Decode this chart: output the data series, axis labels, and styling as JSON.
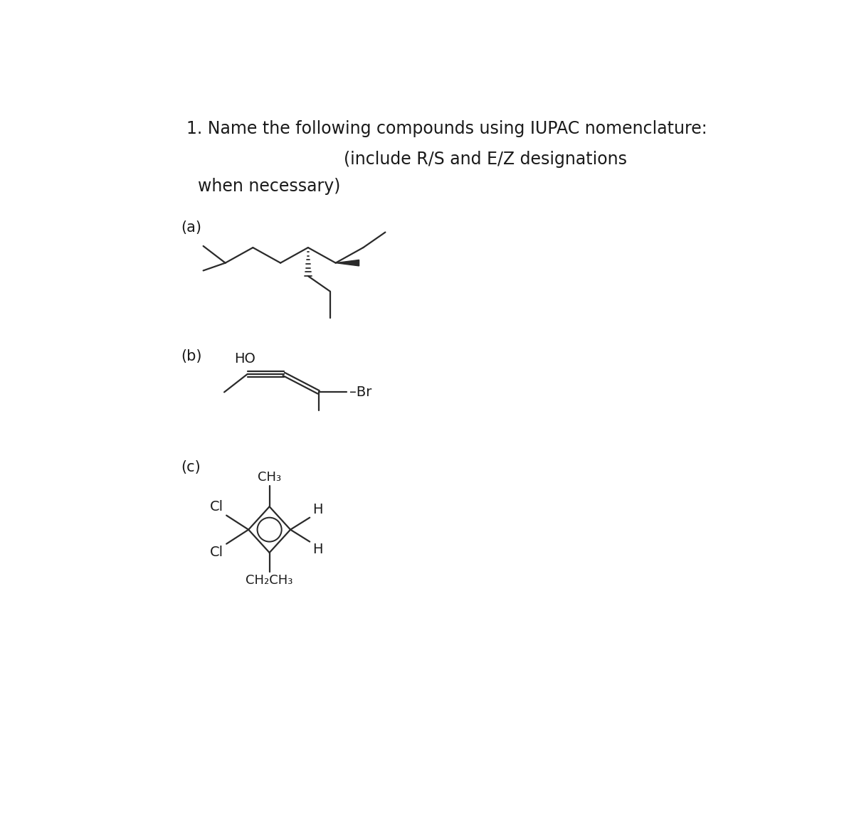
{
  "title_line1": "1. Name the following compounds using IUPAC nomenclature:",
  "title_line2": "(include R/S and E/Z designations",
  "title_line3": "when necessary)",
  "label_a": "(a)",
  "label_b": "(b)",
  "label_c": "(c)",
  "bg_color": "#ffffff",
  "line_color": "#2a2a2a",
  "text_color": "#1a1a1a",
  "title_fontsize": 17,
  "label_fontsize": 15,
  "chem_fontsize": 13,
  "sub_fontsize": 13
}
